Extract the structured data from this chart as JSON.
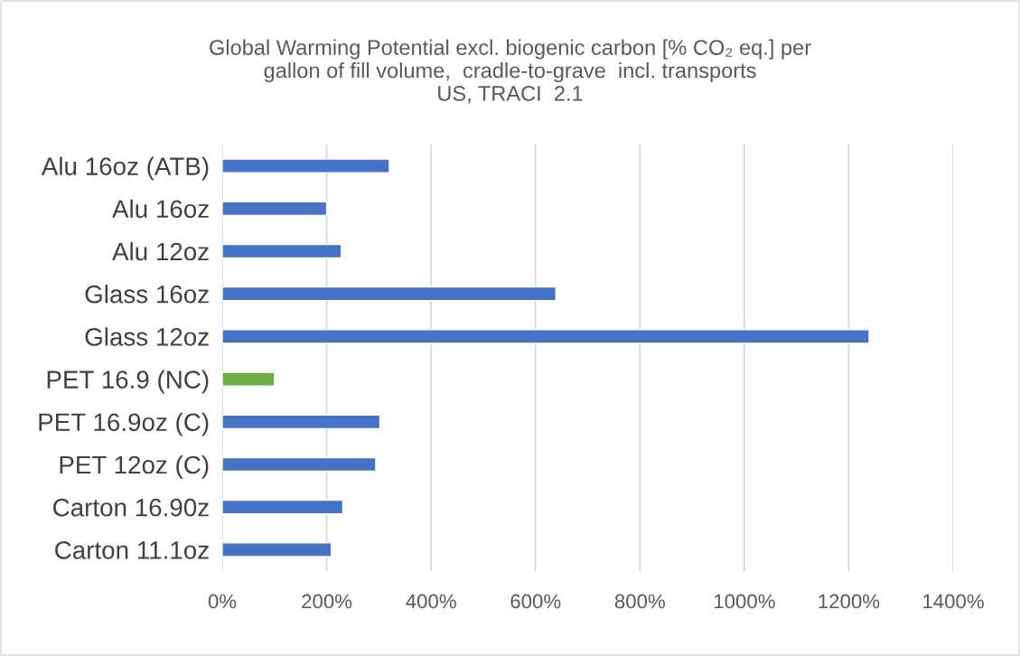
{
  "chart_data": {
    "type": "bar",
    "orientation": "horizontal",
    "title": "Global Warming Potential excl. biogenic carbon [% CO₂ eq.] per\ngallon of fill volume,  cradle-to-grave  incl. transports\nUS, TRACI  2.1",
    "categories": [
      "Alu 16oz (ATB)",
      "Alu 16oz",
      "Alu 12oz",
      "Glass 16oz",
      "Glass 12oz",
      "PET 16.9 (NC)",
      "PET 16.9oz (C)",
      "PET 12oz (C)",
      "Carton 16.90z",
      "Carton 11.1oz"
    ],
    "values": [
      320,
      200,
      228,
      639,
      1239,
      100,
      302,
      294,
      231,
      209
    ],
    "colors": [
      "#4472c4",
      "#4472c4",
      "#4472c4",
      "#4472c4",
      "#4472c4",
      "#70ad47",
      "#4472c4",
      "#4472c4",
      "#4472c4",
      "#4472c4"
    ],
    "xlim": [
      0,
      1400
    ],
    "xticks": [
      {
        "value": 0,
        "label": "0%"
      },
      {
        "value": 200,
        "label": "200%"
      },
      {
        "value": 400,
        "label": "400%"
      },
      {
        "value": 600,
        "label": "600%"
      },
      {
        "value": 800,
        "label": "800%"
      },
      {
        "value": 1000,
        "label": "1000%"
      },
      {
        "value": 1200,
        "label": "1200%"
      },
      {
        "value": 1400,
        "label": "1400%"
      }
    ],
    "grid": "x",
    "legend": false
  }
}
